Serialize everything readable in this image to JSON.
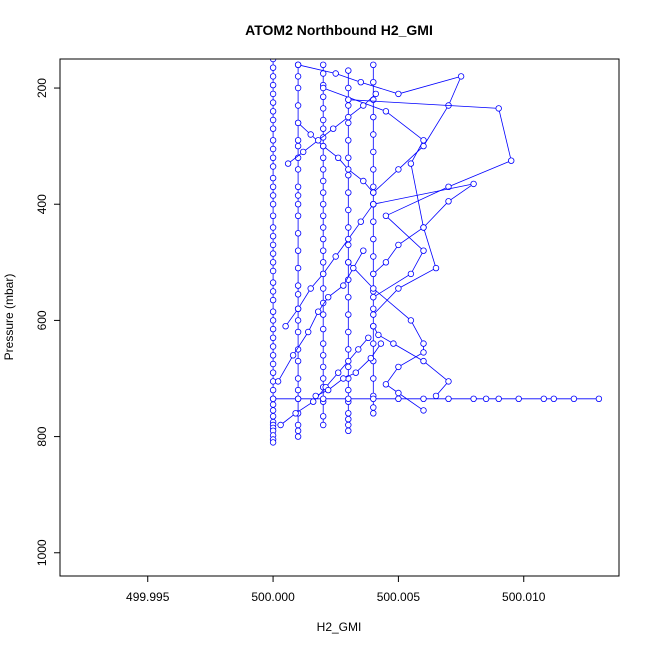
{
  "chart_data": {
    "type": "line",
    "title": "ATOM2 Northbound H2_GMI",
    "xlabel": "H2_GMI",
    "ylabel": "Pressure (mbar)",
    "xlim": [
      499.9915,
      500.0138
    ],
    "ylim": [
      1040,
      150
    ],
    "y_reversed": true,
    "x_ticks": [
      499.995,
      500.0,
      500.005,
      500.01
    ],
    "x_tick_labels": [
      "499.995",
      "500.000",
      "500.005",
      "500.010"
    ],
    "y_ticks": [
      200,
      400,
      600,
      800,
      1000
    ],
    "y_tick_labels": [
      "200",
      "400",
      "600",
      "800",
      "1000"
    ],
    "grid": false,
    "legend": "none",
    "marker": "open-circle",
    "color": "#0000ff",
    "series": [
      {
        "x": [
          500.0,
          500.0,
          500.0,
          500.0,
          500.0,
          500.0,
          500.0,
          500.0,
          500.0,
          500.0,
          500.0,
          500.0,
          500.0,
          500.0,
          500.0,
          500.0,
          500.0,
          500.0,
          500.0,
          500.0,
          500.0,
          500.0,
          500.0,
          500.0,
          500.0,
          500.0,
          500.0,
          500.0,
          500.0,
          500.0,
          500.0,
          500.0,
          500.0,
          500.0,
          500.0,
          500.0,
          500.0,
          500.0,
          500.0,
          500.0,
          500.0,
          500.0,
          500.0,
          500.0,
          500.0,
          500.0,
          500.0,
          500.0
        ],
        "y": [
          150,
          165,
          180,
          195,
          210,
          225,
          240,
          255,
          270,
          290,
          305,
          320,
          335,
          355,
          370,
          385,
          400,
          420,
          440,
          455,
          470,
          485,
          500,
          515,
          535,
          550,
          565,
          585,
          600,
          615,
          630,
          645,
          660,
          675,
          690,
          705,
          720,
          735,
          745,
          755,
          765,
          775,
          780,
          785,
          790,
          798,
          805,
          810
        ]
      },
      {
        "x": [
          500.001,
          500.001,
          500.001,
          500.001,
          500.001,
          500.001,
          500.001,
          500.001,
          500.001,
          500.001,
          500.001,
          500.001,
          500.001,
          500.001,
          500.001,
          500.001,
          500.001,
          500.001,
          500.001,
          500.001,
          500.001,
          500.001,
          500.001,
          500.001,
          500.001,
          500.001,
          500.001,
          500.001,
          500.001,
          500.001
        ],
        "y": [
          160,
          180,
          200,
          230,
          260,
          290,
          300,
          320,
          340,
          370,
          385,
          400,
          420,
          450,
          480,
          510,
          540,
          555,
          580,
          600,
          620,
          650,
          670,
          700,
          720,
          735,
          760,
          780,
          790,
          800
        ]
      },
      {
        "x": [
          500.002,
          500.002,
          500.002,
          500.002,
          500.002,
          500.002,
          500.002,
          500.002,
          500.002,
          500.002,
          500.002,
          500.002,
          500.002,
          500.002,
          500.002,
          500.002,
          500.002,
          500.002,
          500.002,
          500.002,
          500.002,
          500.002,
          500.002,
          500.002,
          500.002,
          500.002,
          500.002,
          500.002,
          500.002,
          500.002,
          500.002,
          500.002
        ],
        "y": [
          160,
          175,
          195,
          215,
          235,
          255,
          270,
          285,
          300,
          320,
          340,
          360,
          380,
          400,
          420,
          440,
          460,
          480,
          500,
          520,
          545,
          570,
          590,
          615,
          640,
          660,
          680,
          700,
          715,
          740,
          765,
          780
        ]
      },
      {
        "x": [
          500.003,
          500.003,
          500.003,
          500.003,
          500.003,
          500.003,
          500.003,
          500.003,
          500.003,
          500.003,
          500.003,
          500.003,
          500.003,
          500.003,
          500.003,
          500.003,
          500.003,
          500.003,
          500.003,
          500.003,
          500.003,
          500.003,
          500.003,
          500.003,
          500.003
        ],
        "y": [
          170,
          200,
          230,
          260,
          290,
          320,
          350,
          380,
          410,
          440,
          470,
          500,
          530,
          560,
          590,
          620,
          650,
          680,
          700,
          720,
          740,
          760,
          770,
          780,
          790
        ]
      },
      {
        "x": [
          500.004,
          500.004,
          500.004,
          500.004,
          500.004,
          500.004,
          500.004,
          500.004,
          500.004,
          500.004,
          500.004,
          500.004,
          500.004,
          500.004,
          500.004,
          500.004,
          500.004,
          500.004,
          500.004,
          500.004,
          500.004,
          500.004
        ],
        "y": [
          160,
          190,
          220,
          250,
          280,
          310,
          340,
          370,
          400,
          430,
          460,
          490,
          520,
          550,
          580,
          610,
          640,
          670,
          700,
          730,
          750,
          760
        ]
      },
      {
        "x": [
          500.001,
          500.0025,
          500.0035,
          500.005,
          500.0075,
          500.007,
          500.006,
          500.005,
          500.004
        ],
        "y": [
          160,
          175,
          190,
          210,
          180,
          230,
          300,
          340,
          380
        ]
      },
      {
        "x": [
          500.002,
          500.0045,
          500.006,
          500.0055,
          500.006,
          500.0065,
          500.005,
          500.004
        ],
        "y": [
          200,
          240,
          290,
          330,
          440,
          510,
          545,
          590
        ]
      },
      {
        "x": [
          500.003,
          500.009,
          500.0095,
          500.007,
          500.0045,
          500.006,
          500.0055,
          500.004
        ],
        "y": [
          220,
          235,
          325,
          370,
          420,
          480,
          520,
          560
        ]
      },
      {
        "x": [
          500.004,
          500.008,
          500.007,
          500.006,
          500.005,
          500.0045,
          500.004
        ],
        "y": [
          400,
          365,
          395,
          440,
          470,
          500,
          520
        ]
      },
      {
        "x": [
          500.003,
          500.004,
          500.0055,
          500.006,
          500.006,
          500.005,
          500.0045,
          500.005,
          500.006
        ],
        "y": [
          500,
          545,
          600,
          640,
          655,
          680,
          710,
          725,
          755
        ]
      },
      {
        "x": [
          500.004,
          500.0042,
          500.0048,
          500.006,
          500.007,
          500.0065
        ],
        "y": [
          610,
          625,
          640,
          670,
          705,
          730
        ]
      },
      {
        "x": [
          500.0,
          500.001,
          500.002,
          500.003,
          500.004,
          500.005,
          500.006,
          500.007,
          500.008,
          500.0085,
          500.009,
          500.0098,
          500.0108,
          500.0112,
          500.012,
          500.013
        ],
        "y": [
          735,
          735,
          735,
          735,
          735,
          735,
          735,
          735,
          735,
          735,
          735,
          735,
          735,
          735,
          735,
          735
        ]
      },
      {
        "x": [
          500.0005,
          500.001,
          500.0015,
          500.002,
          500.0025,
          500.003,
          500.0035,
          500.004
        ],
        "y": [
          610,
          580,
          545,
          520,
          490,
          460,
          430,
          400
        ]
      },
      {
        "x": [
          500.0002,
          500.0008,
          500.0014,
          500.0018,
          500.0022,
          500.0028,
          500.0032,
          500.0036
        ],
        "y": [
          705,
          660,
          620,
          585,
          560,
          540,
          510,
          480
        ]
      },
      {
        "x": [
          500.0003,
          500.0009,
          500.0016,
          500.0021,
          500.0026,
          500.003,
          500.0034,
          500.0038
        ],
        "y": [
          780,
          760,
          740,
          715,
          690,
          670,
          650,
          630
        ]
      },
      {
        "x": [
          500.001,
          500.0015,
          500.002,
          500.0026,
          500.003,
          500.0036,
          500.004
        ],
        "y": [
          260,
          280,
          300,
          320,
          340,
          360,
          380
        ]
      },
      {
        "x": [
          500.0006,
          500.0012,
          500.0018,
          500.0024,
          500.003,
          500.0036,
          500.0041
        ],
        "y": [
          330,
          310,
          290,
          270,
          250,
          230,
          210
        ]
      },
      {
        "x": [
          500.0017,
          500.0022,
          500.0028,
          500.0033,
          500.0039,
          500.0043
        ],
        "y": [
          730,
          720,
          700,
          690,
          665,
          640
        ]
      }
    ]
  }
}
